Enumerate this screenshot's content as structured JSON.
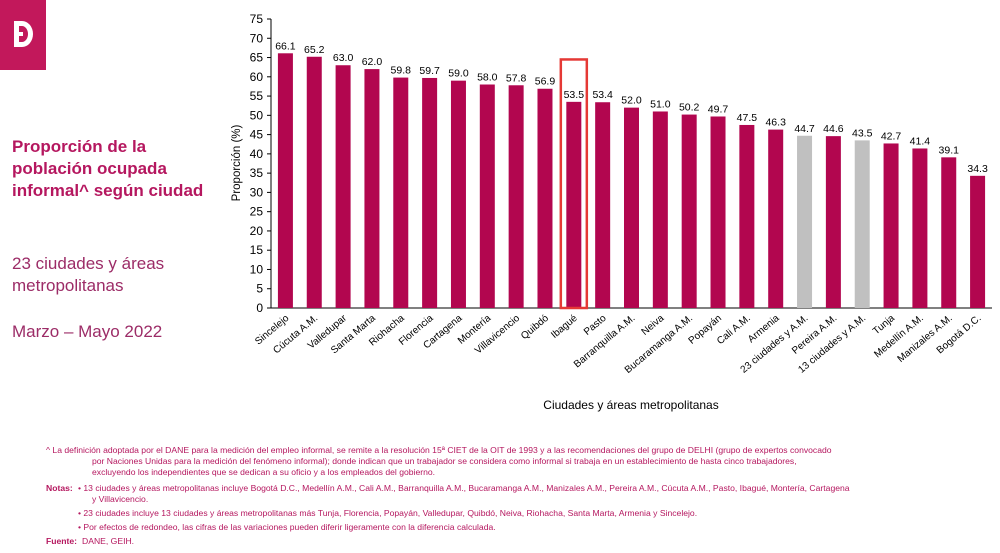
{
  "panel": {
    "title": "Proporción de la población ocupada informal^ según ciudad",
    "subtitle": "23 ciudades y áreas metropolitanas",
    "period": "Marzo – Mayo 2022"
  },
  "colors": {
    "accent": "#b5175f",
    "bar": "#b2064f",
    "aggregate": "#c0c0c0",
    "highlight": "#e53935"
  },
  "chart_data": {
    "type": "bar",
    "title": "",
    "xlabel": "Ciudades y áreas metropolitanas",
    "ylabel": "Proporción (%)",
    "ylim": [
      0,
      75
    ],
    "yticks": [
      0,
      5,
      10,
      15,
      20,
      25,
      30,
      35,
      40,
      45,
      50,
      55,
      60,
      65,
      70,
      75
    ],
    "grid": false,
    "highlighted": "Ibagué",
    "aggregates": [
      "23 ciudades y A.M.",
      "13 ciudades y A.M."
    ],
    "categories": [
      "Sincelejo",
      "Cúcuta A.M.",
      "Valledupar",
      "Santa Marta",
      "Riohacha",
      "Florencia",
      "Cartagena",
      "Montería",
      "Villavicencio",
      "Quibdó",
      "Ibagué",
      "Pasto",
      "Barranquilla A.M.",
      "Neiva",
      "Bucaramanga A.M.",
      "Popayán",
      "Cali A.M.",
      "Armenia",
      "23 ciudades y A.M.",
      "Pereira A.M.",
      "13 ciudades y A.M.",
      "Tunja",
      "Medellín A.M.",
      "Manizales A.M.",
      "Bogotá D.C."
    ],
    "values": [
      66.1,
      65.2,
      63.0,
      62.0,
      59.8,
      59.7,
      59.0,
      58.0,
      57.8,
      56.9,
      53.5,
      53.4,
      52.0,
      51.0,
      50.2,
      49.7,
      47.5,
      46.3,
      44.7,
      44.6,
      43.5,
      42.7,
      41.4,
      39.1,
      34.3
    ],
    "value_labels": [
      "66.1",
      "65.2",
      "63.0",
      "62.0",
      "59.8",
      "59.7",
      "59.0",
      "58.0",
      "57.8",
      "56.9",
      "53.5",
      "53.4",
      "52.0",
      "51.0",
      "50.2",
      "49.7",
      "47.5",
      "46.3",
      "44.7",
      "44.6",
      "43.5",
      "42.7",
      "41.4",
      "39.1",
      "34.3"
    ]
  },
  "notes": {
    "footnote_1": "^ La definición adoptada por el DANE para la medición del empleo informal, se remite a la resolución 15ª CIET de la OIT de 1993 y a las recomendaciones del grupo de DELHI  (grupo de expertos convocado",
    "footnote_2": "por Naciones Unidas para la medición del fenómeno informal); donde indican que un trabajador se considera como informal si trabaja en un establecimiento de hasta cinco trabajadores,",
    "footnote_3": "excluyendo los independientes que se dedican a su oficio y a los empleados del gobierno.",
    "notes_label": "Notas:",
    "note_1a": "• 13 ciudades y áreas metropolitanas incluye Bogotá D.C., Medellín A.M., Cali A.M., Barranquilla A.M., Bucaramanga A.M., Manizales A.M., Pereira A.M., Cúcuta A.M., Pasto, Ibagué, Montería, Cartagena",
    "note_1b": "y Villavicencio.",
    "note_2": "• 23 ciudades incluye 13 ciudades y áreas metropolitanas más Tunja, Florencia, Popayán, Valledupar, Quibdó, Neiva, Riohacha, Santa Marta, Armenia y Sincelejo.",
    "note_3": "• Por efectos de redondeo, las cifras de las variaciones pueden diferir ligeramente con la diferencia calculada.",
    "source_label": "Fuente:",
    "source": "DANE, GEIH."
  }
}
